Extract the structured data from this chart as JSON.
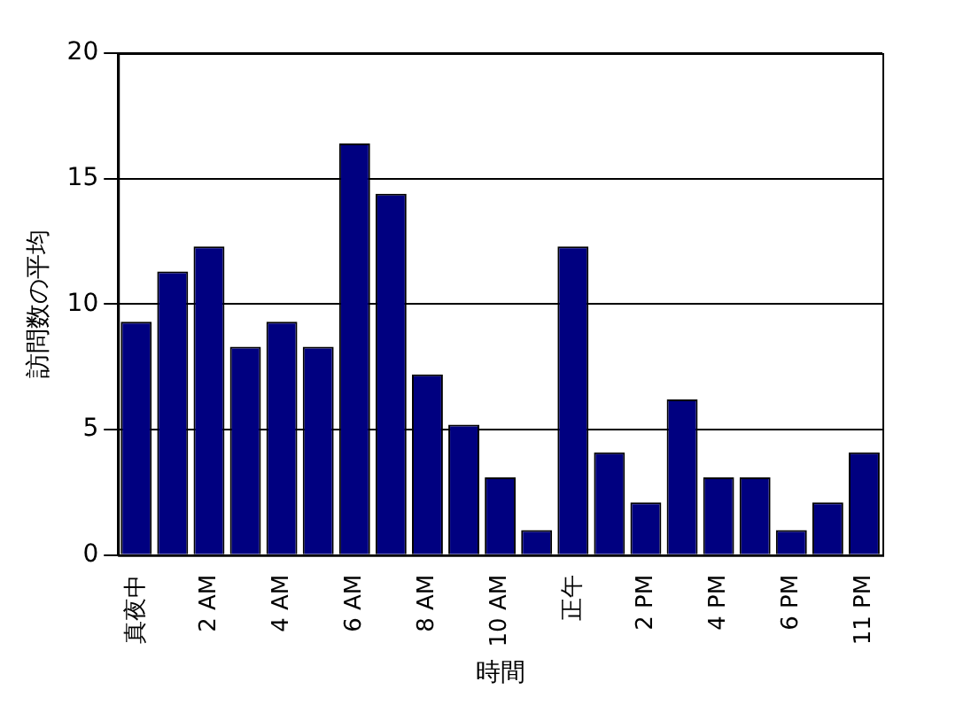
{
  "chart_data": {
    "type": "bar",
    "xlabel": "時間",
    "ylabel": "訪問数の平均",
    "categories": [
      "真夜中",
      null,
      "2 AM",
      null,
      "4 AM",
      null,
      "6 AM",
      null,
      "8 AM",
      null,
      "10 AM",
      null,
      "正午",
      null,
      "2 PM",
      null,
      "4 PM",
      null,
      "6 PM",
      null,
      "11 PM"
    ],
    "values": [
      9.3,
      11.3,
      12.3,
      8.3,
      9.3,
      8.3,
      16.4,
      14.4,
      7.2,
      5.2,
      3.1,
      1.0,
      12.3,
      4.1,
      2.1,
      6.2,
      3.1,
      3.1,
      1.0,
      2.1,
      4.1
    ],
    "color": "#000080",
    "ylim": [
      0,
      20
    ],
    "yticks": [
      0,
      5,
      10,
      15,
      20
    ],
    "grid": "y",
    "legend": false
  }
}
